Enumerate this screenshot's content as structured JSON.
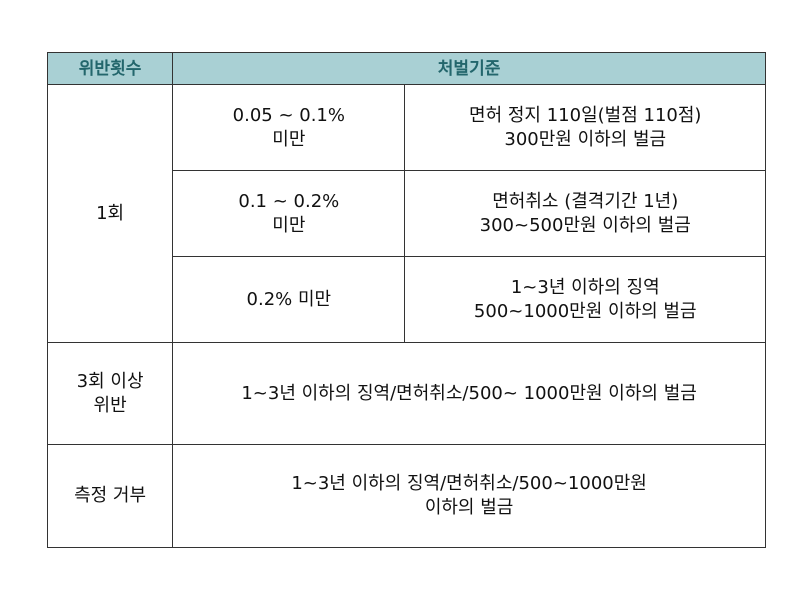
{
  "table": {
    "header": {
      "violations": "위반횟수",
      "criteria": "처벌기준"
    },
    "first_offense": {
      "label": "1회",
      "rows": [
        {
          "bac": [
            "0.05 ~ 0.1%",
            "미만"
          ],
          "penalty": [
            "면허 정지 110일(벌점 110점)",
            "300만원 이하의 벌금"
          ]
        },
        {
          "bac": [
            "0.1 ~ 0.2%",
            "미만"
          ],
          "penalty": [
            "면허취소 (결격기간 1년)",
            "300~500만원 이하의 벌금"
          ]
        },
        {
          "bac": [
            "0.2% 미만"
          ],
          "penalty": [
            "1~3년 이하의 징역",
            "500~1000만원 이하의 벌금"
          ]
        }
      ]
    },
    "repeat_offense": {
      "label": [
        "3회 이상",
        "위반"
      ],
      "penalty": "1~3년 이하의 징역/면허취소/500~ 1000만원 이하의 벌금"
    },
    "refusal": {
      "label": "측정 거부",
      "penalty": [
        "1~3년 이하의 징역/면허취소/500~1000만원",
        "이하의 벌금"
      ]
    }
  }
}
